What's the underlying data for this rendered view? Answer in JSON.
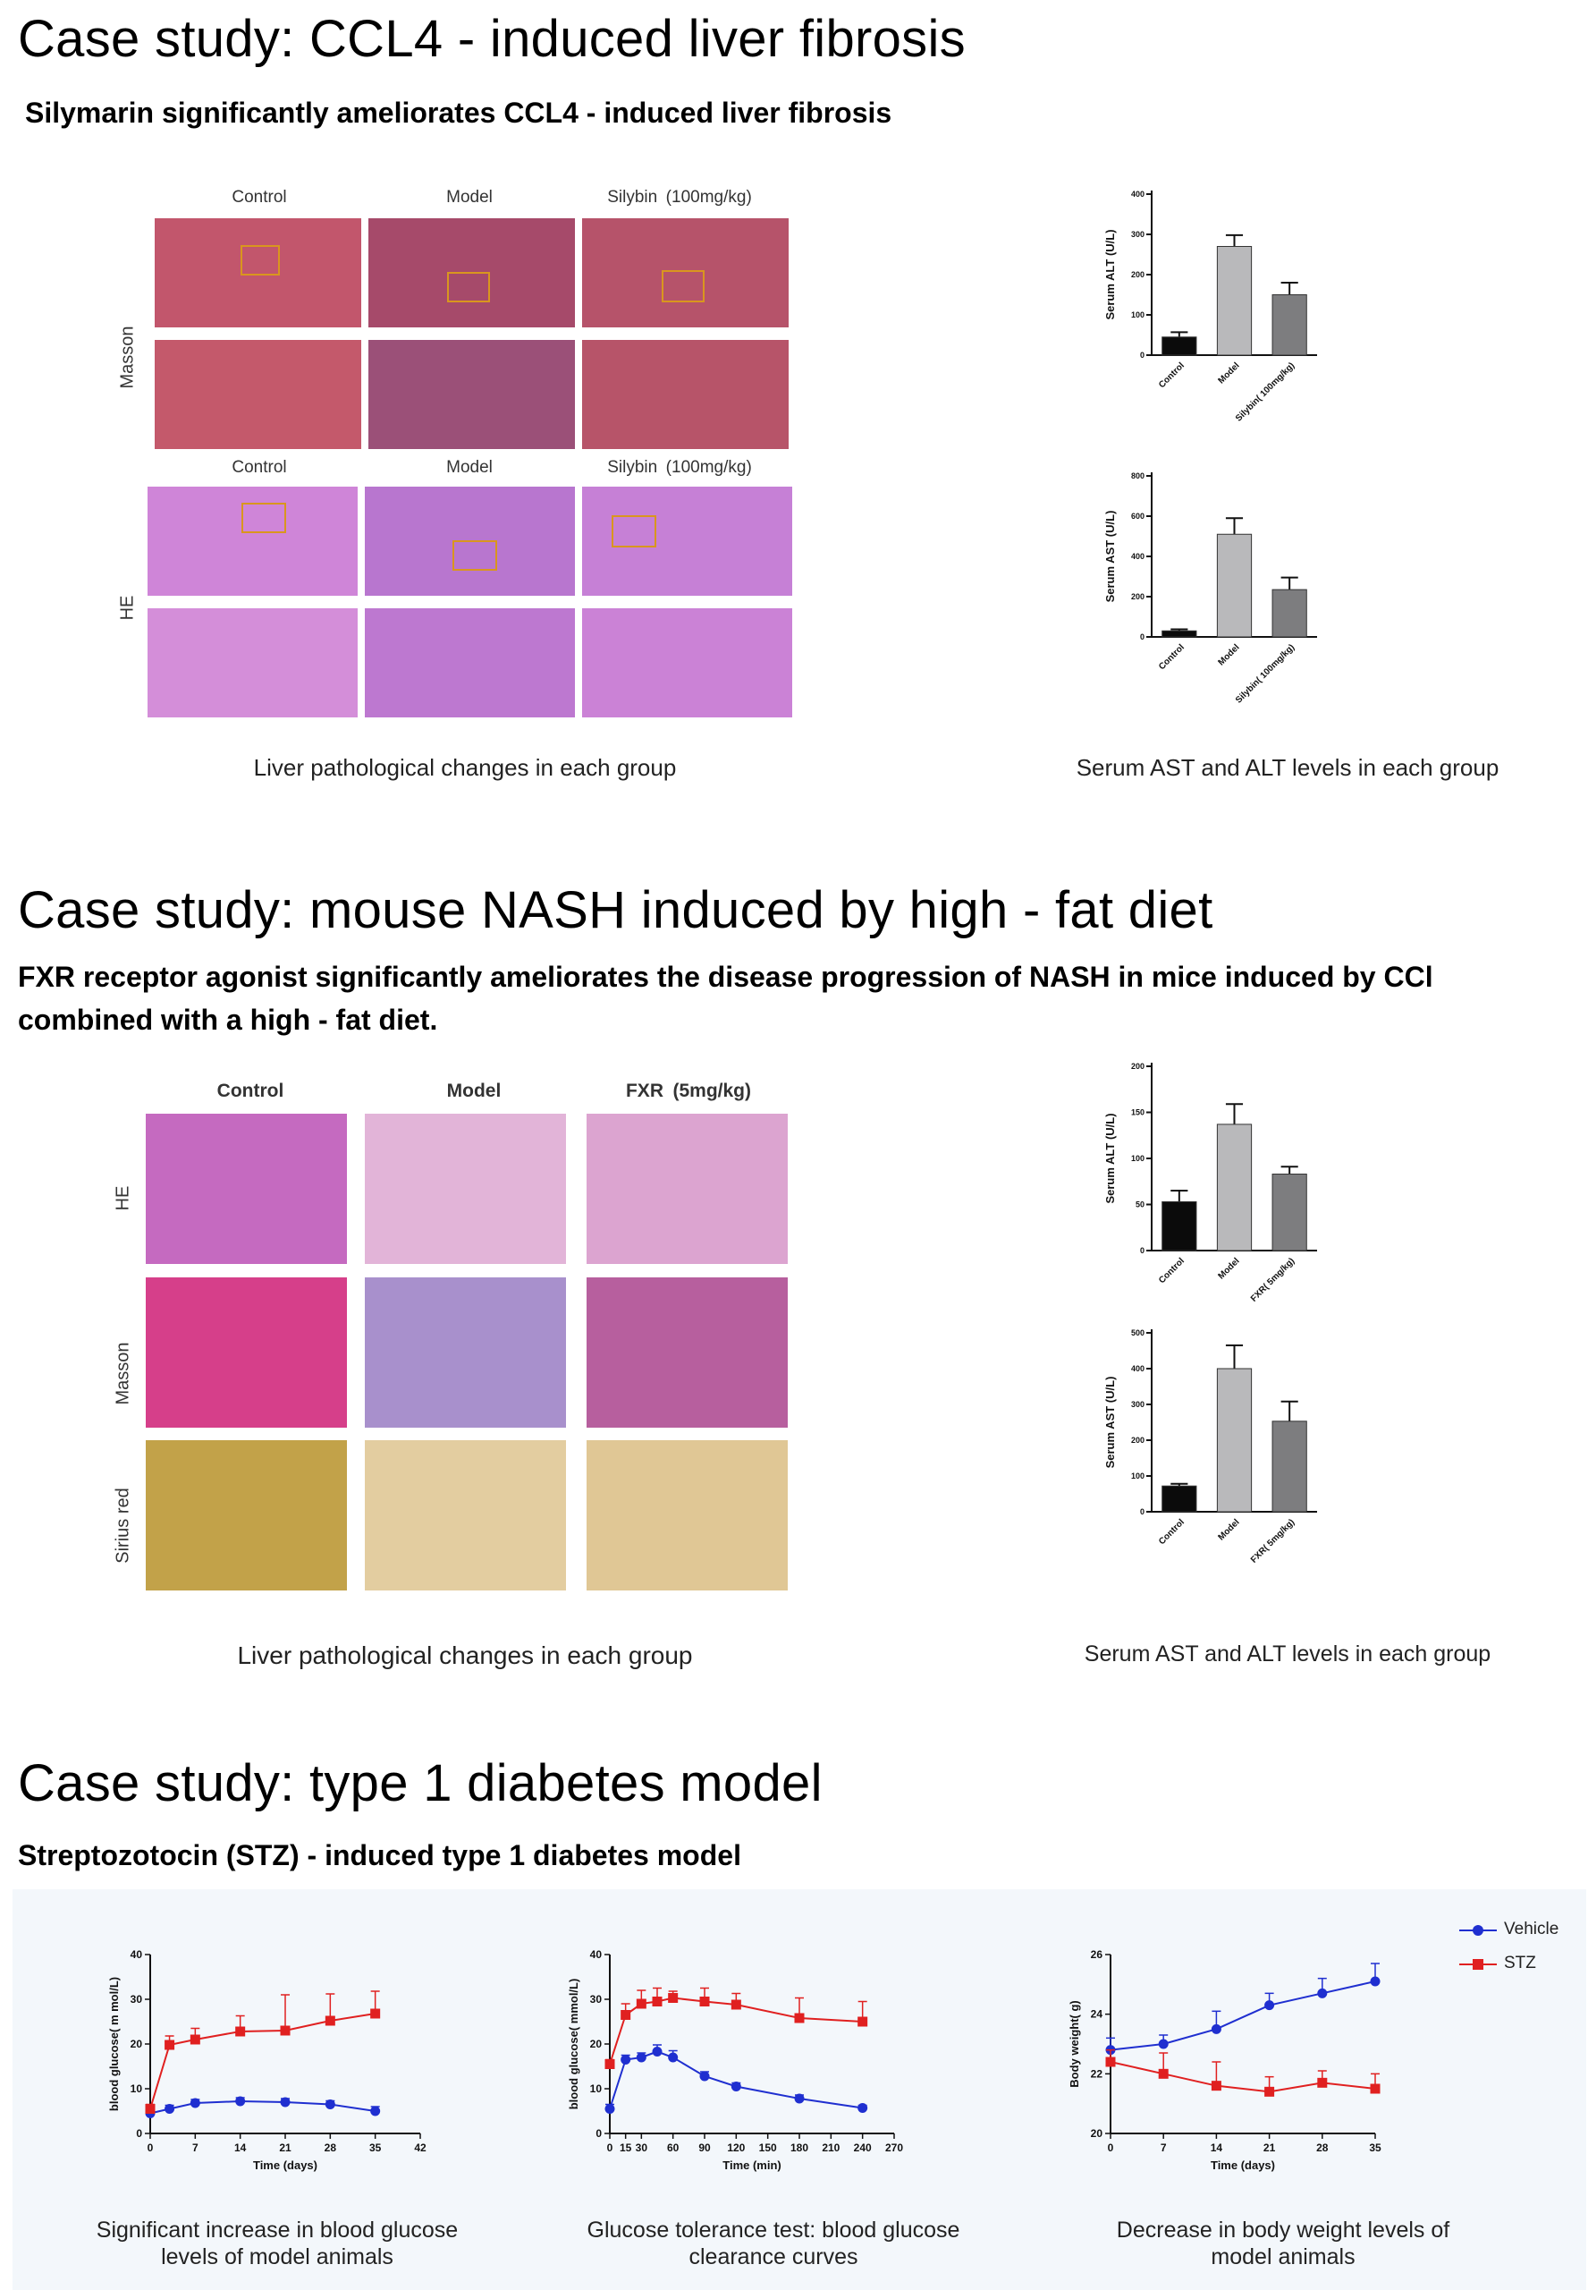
{
  "section1": {
    "title": "Case study: CCL4 - induced liver fibrosis",
    "subtitle": "Silymarin significantly ameliorates CCL4 - induced liver fibrosis",
    "figure": {
      "columns": [
        "Control",
        "Model",
        "Silybin (100mg/kg)"
      ],
      "columns_row2": [
        "Control",
        "Model",
        "Silybin (100mg/kg)"
      ],
      "rows": [
        "Masson",
        "HE"
      ]
    },
    "caption_left": "Liver pathological changes in each group",
    "caption_right": "Serum AST and ALT levels in each group"
  },
  "section2": {
    "title": "Case study: mouse NASH induced by high - fat diet",
    "subtitle": "FXR receptor agonist significantly ameliorates the disease progression of NASH in mice induced by CCl combined with a high - fat diet.",
    "figure": {
      "columns": [
        "Control",
        "Model",
        "FXR (5mg/kg)"
      ],
      "rows": [
        "HE",
        "Masson",
        "Sirius red"
      ]
    },
    "caption_left": "Liver pathological changes in each group",
    "caption_right": "Serum AST and ALT levels in each group"
  },
  "section3": {
    "title": "Case study: type 1 diabetes model",
    "subtitle": "Streptozotocin (STZ) - induced type 1 diabetes model",
    "legend": [
      "Vehicle",
      "STZ"
    ],
    "captions": [
      [
        "Significant increase in blood glucose",
        "levels of model animals"
      ],
      [
        "Glucose tolerance test: blood glucose",
        "clearance curves"
      ],
      [
        "Decrease in body weight levels of",
        "model animals"
      ]
    ]
  },
  "colors": {
    "masson_bg": "#b4475d",
    "he_bg": "#c878d2",
    "sirius_bg": "#c9a54a",
    "bar_black": "#0b0b0b",
    "bar_light": "#b9b9bb",
    "bar_mid": "#7d7d7f",
    "vehicle": "#1f2fd0",
    "stz": "#e02020"
  },
  "chart_data": [
    {
      "type": "bar",
      "ylabel": "Serum ALT (U/L)",
      "categories": [
        "Control",
        "Model",
        "Silybin( 100mg/kg)"
      ],
      "values": [
        45,
        270,
        150
      ],
      "errors": [
        12,
        28,
        30
      ],
      "yticks": [
        0,
        100,
        200,
        300,
        400
      ],
      "ylim": [
        0,
        400
      ]
    },
    {
      "type": "bar",
      "ylabel": "Serum AST (U/L)",
      "categories": [
        "Control",
        "Model",
        "Silybin( 100mg/kg)"
      ],
      "values": [
        30,
        510,
        235
      ],
      "errors": [
        8,
        80,
        60
      ],
      "yticks": [
        0,
        200,
        400,
        600,
        800
      ],
      "ylim": [
        0,
        800
      ]
    },
    {
      "type": "bar",
      "ylabel": "Serum ALT (U/L)",
      "categories": [
        "Control",
        "Model",
        "FXR( 5mg/kg)"
      ],
      "values": [
        53,
        137,
        83
      ],
      "errors": [
        12,
        22,
        8
      ],
      "yticks": [
        0,
        50,
        100,
        150,
        200
      ],
      "ylim": [
        0,
        200
      ]
    },
    {
      "type": "bar",
      "ylabel": "Serum AST (U/L)",
      "categories": [
        "Control",
        "Model",
        "FXR( 5mg/kg)"
      ],
      "values": [
        72,
        400,
        253
      ],
      "errors": [
        6,
        65,
        55
      ],
      "yticks": [
        0,
        100,
        200,
        300,
        400,
        500
      ],
      "ylim": [
        0,
        500
      ]
    },
    {
      "type": "line",
      "xlabel": "Time (days)",
      "ylabel": "blood glucose( m mol/L)",
      "xticks": [
        0,
        7,
        14,
        21,
        28,
        35,
        42
      ],
      "yticks": [
        0,
        10,
        20,
        30,
        40
      ],
      "xlim": [
        0,
        42
      ],
      "ylim": [
        0,
        40
      ],
      "series": [
        {
          "name": "Vehicle",
          "x": [
            0,
            3,
            7,
            14,
            21,
            28,
            35
          ],
          "y": [
            4.5,
            5.5,
            6.8,
            7.2,
            7.0,
            6.5,
            5.0
          ],
          "err": [
            1,
            0.8,
            0.8,
            0.8,
            0.8,
            0.8,
            1
          ]
        },
        {
          "name": "STZ",
          "x": [
            0,
            3,
            7,
            14,
            21,
            28,
            35
          ],
          "y": [
            5.5,
            19.8,
            21.0,
            22.8,
            23.0,
            25.2,
            26.8
          ],
          "err": [
            1,
            2,
            2.5,
            3.5,
            8,
            6,
            5
          ]
        }
      ]
    },
    {
      "type": "line",
      "xlabel": "Time (min)",
      "ylabel": "blood glucose( mmol/L)",
      "xticks": [
        0,
        15,
        30,
        60,
        90,
        120,
        150,
        180,
        210,
        240,
        270
      ],
      "yticks": [
        0,
        10,
        20,
        30,
        40
      ],
      "xlim": [
        0,
        270
      ],
      "ylim": [
        0,
        40
      ],
      "series": [
        {
          "name": "Vehicle",
          "x": [
            0,
            15,
            30,
            45,
            60,
            90,
            120,
            180,
            240
          ],
          "y": [
            5.5,
            16.5,
            17.0,
            18.3,
            17.0,
            12.8,
            10.5,
            7.8,
            5.7
          ],
          "err": [
            1,
            1,
            1,
            1.5,
            1.5,
            1,
            0.8,
            0.8,
            0.6
          ]
        },
        {
          "name": "STZ",
          "x": [
            0,
            15,
            30,
            45,
            60,
            90,
            120,
            180,
            240
          ],
          "y": [
            15.5,
            26.5,
            29.0,
            29.5,
            30.3,
            29.5,
            28.8,
            25.8,
            25.0
          ],
          "err": [
            1,
            2.5,
            3,
            3,
            1.5,
            3,
            2.5,
            4.5,
            4.5
          ]
        }
      ]
    },
    {
      "type": "line",
      "xlabel": "Time (days)",
      "ylabel": "Body weight( g)",
      "xticks": [
        0,
        7,
        14,
        21,
        28,
        35
      ],
      "yticks": [
        20,
        22,
        24,
        26
      ],
      "xlim": [
        0,
        35
      ],
      "ylim": [
        20,
        26
      ],
      "series": [
        {
          "name": "Vehicle",
          "x": [
            0,
            7,
            14,
            21,
            28,
            35
          ],
          "y": [
            22.8,
            23.0,
            23.5,
            24.3,
            24.7,
            25.1
          ],
          "err": [
            0.4,
            0.3,
            0.6,
            0.4,
            0.5,
            0.6
          ]
        },
        {
          "name": "STZ",
          "x": [
            0,
            7,
            14,
            21,
            28,
            35
          ],
          "y": [
            22.4,
            22.0,
            21.6,
            21.4,
            21.7,
            21.5
          ],
          "err": [
            0.4,
            0.7,
            0.8,
            0.5,
            0.4,
            0.5
          ]
        }
      ]
    }
  ]
}
